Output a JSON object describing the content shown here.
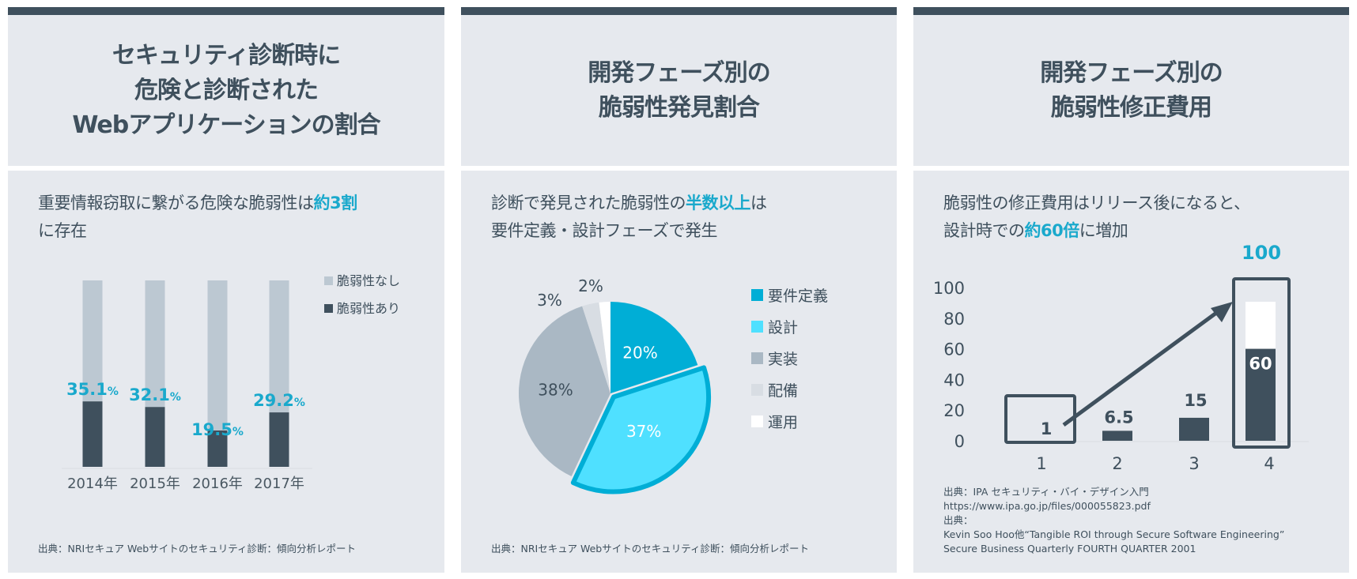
{
  "panels": [
    {
      "title_lines": [
        "セキュリティ診断時に",
        "危険と診断された",
        "Webアプリケーションの割合"
      ],
      "lead_pre": "重要情報窃取に繋がる危険な脆弱性は",
      "lead_em": "約3割",
      "lead_post": "に存在",
      "source": "出典：NRIセキュア Webサイトのセキュリティ診断：傾向分析レポート"
    },
    {
      "title_lines": [
        "開発フェーズ別の",
        "脆弱性発見割合"
      ],
      "lead_pre": "診断で発見された脆弱性の",
      "lead_em": "半数以上",
      "lead_post1": "は",
      "lead_line2": "要件定義・設計フェーズで発生",
      "source": "出典：NRIセキュア Webサイトのセキュリティ診断：傾向分析レポート"
    },
    {
      "title_lines": [
        "開発フェーズ別の",
        "脆弱性修正費用"
      ],
      "lead_line1": "脆弱性の修正費用はリリース後になると、",
      "lead_pre": "設計時での",
      "lead_em": "約60倍",
      "lead_post": "に増加",
      "source_lines": [
        "出典：IPA セキュリティ・バイ・デザイン入門",
        "https://www.ipa.go.jp/files/000055823.pdf",
        "出典：",
        "Kevin Soo Hoo他“Tangible ROI through Secure Software Engineering”",
        "Secure Business Quarterly FOURTH QUARTER 2001"
      ]
    }
  ],
  "colors": {
    "dark": "#3f505d",
    "accent": "#1aa9cc",
    "panel_bg": "#e6e9ee",
    "light_bar": "#bcc8d2"
  },
  "chart_data": [
    {
      "type": "bar",
      "stacked": true,
      "categories": [
        "2014年",
        "2015年",
        "2016年",
        "2017年"
      ],
      "series": [
        {
          "name": "脆弱性あり",
          "values": [
            35.1,
            32.1,
            19.5,
            29.2
          ],
          "color": "#3f505d"
        },
        {
          "name": "脆弱性なし",
          "values": [
            64.9,
            67.9,
            80.5,
            70.8
          ],
          "color": "#bcc8d2"
        }
      ],
      "data_labels": [
        "35.1",
        "32.1",
        "19.5",
        "29.2"
      ],
      "data_label_unit": "%",
      "legend": [
        "脆弱性なし",
        "脆弱性あり"
      ],
      "legend_position": "top-right",
      "ylim": [
        0,
        100
      ]
    },
    {
      "type": "pie",
      "slices": [
        {
          "label": "要件定義",
          "value": 20,
          "text": "20%",
          "color": "#00aed6"
        },
        {
          "label": "設計",
          "value": 37,
          "text": "37%",
          "color": "#4fe0ff",
          "highlighted": true
        },
        {
          "label": "実装",
          "value": 38,
          "text": "38%",
          "color": "#aab8c4"
        },
        {
          "label": "配備",
          "value": 3,
          "text": "3%",
          "color": "#d8dde3"
        },
        {
          "label": "運用",
          "value": 2,
          "text": "2%",
          "color": "#ffffff"
        }
      ],
      "legend_position": "right"
    },
    {
      "type": "bar",
      "categories": [
        "1",
        "2",
        "3",
        "4"
      ],
      "values": [
        1,
        6.5,
        15,
        60
      ],
      "data_labels": [
        "1",
        "6.5",
        "15",
        "60"
      ],
      "extra_bar4_total": 100,
      "extra_bar4_label": "100",
      "yticks": [
        "0",
        "20",
        "40",
        "60",
        "80",
        "100"
      ],
      "ylim": [
        0,
        100
      ],
      "annotation": "arrow from 1 to 4, boxes around 1 and 4"
    }
  ]
}
